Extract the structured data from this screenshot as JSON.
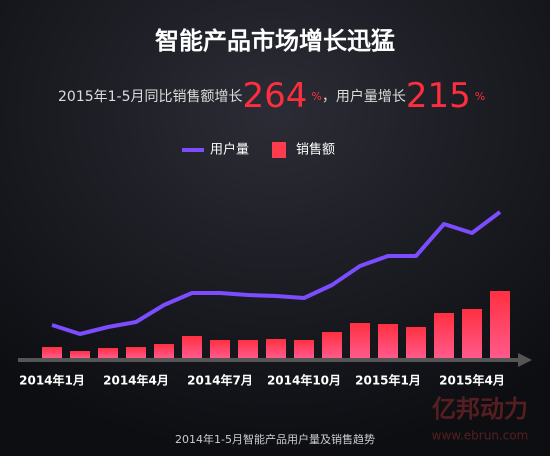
{
  "chart_data": {
    "type": "bar-line",
    "title": "智能产品市场增长迅猛",
    "subtitle_parts": [
      "2015年1-5月同比销售额增长",
      "264",
      "%",
      "，用户量增长",
      "215",
      "%"
    ],
    "categories": [
      "2014年1月",
      null,
      null,
      "2014年4月",
      null,
      null,
      "2014年7月",
      null,
      null,
      "2014年10月",
      null,
      null,
      "2015年1月",
      null,
      null,
      "2015年4月",
      null
    ],
    "series": [
      {
        "name": "用户量",
        "type": "line",
        "color": "#7b4dff",
        "values": [
          33,
          24,
          31,
          36,
          53,
          65,
          65,
          63,
          62,
          60,
          73,
          92,
          102,
          102,
          134,
          125,
          146
        ]
      },
      {
        "name": "销售额",
        "type": "bar",
        "color": "#ff3b4e",
        "values": [
          11,
          7,
          10,
          11,
          14,
          22,
          18,
          18,
          19,
          18,
          26,
          35,
          34,
          31,
          45,
          49,
          67
        ]
      }
    ],
    "ylim": [
      0,
      150
    ],
    "footnote": "2014年1-5月智能产品用户量及销售趋势",
    "watermark": [
      "亿邦动力",
      "www.ebrun.com"
    ]
  }
}
